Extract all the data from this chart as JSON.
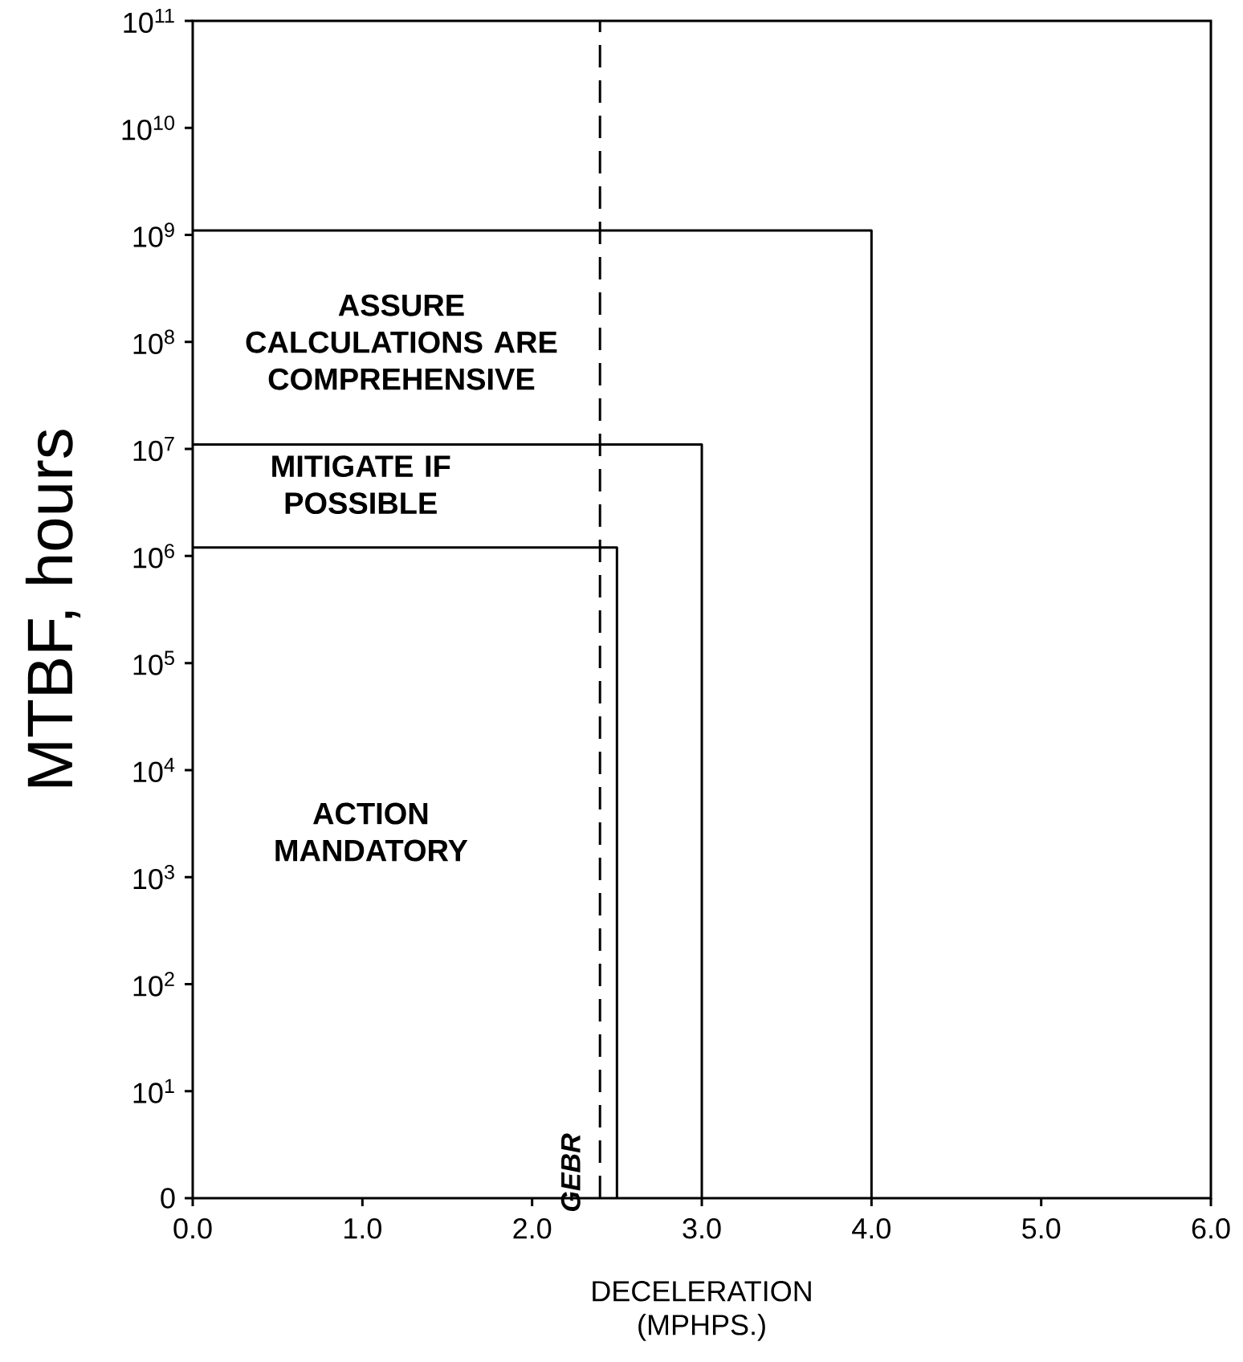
{
  "chart_data": {
    "type": "line",
    "xlabel": "DECELERATION (MPHPS.)",
    "ylabel": "MTBF, hours",
    "log": "y",
    "line_style": "solid",
    "xlim": [
      0,
      6
    ],
    "ylim": [
      0,
      100000000000.0
    ],
    "xticks": [
      {
        "value": 0,
        "label": "0.0"
      },
      {
        "value": 1,
        "label": "1.0"
      },
      {
        "value": 2,
        "label": "2.0"
      },
      {
        "value": 3,
        "label": "3.0"
      },
      {
        "value": 4,
        "label": "4.0"
      },
      {
        "value": 5,
        "label": "5.0"
      },
      {
        "value": 6,
        "label": "6.0"
      }
    ],
    "yticks": [
      {
        "value": 0,
        "label": "0"
      },
      {
        "value": 10,
        "label": "10$^{1}$"
      },
      {
        "value": 100,
        "label": "10$^{2}$"
      },
      {
        "value": 1000,
        "label": "10$^{3}$"
      },
      {
        "value": 10000,
        "label": "10$^{4}$"
      },
      {
        "value": 100000,
        "label": "10$^{5}$"
      },
      {
        "value": 1000000,
        "label": "10$^{6}$"
      },
      {
        "value": 10000000,
        "label": "10$^{7}$"
      },
      {
        "value": 100000000,
        "label": "10$^{8}$"
      },
      {
        "value": 1000000000,
        "label": "10$^{9}$"
      },
      {
        "value": 10000000000,
        "label": "10$^{10}$"
      },
      {
        "value": 100000000000,
        "label": "10$^{11}$"
      }
    ],
    "series": [
      {
        "color": "#000000",
        "x": [
          0,
          4.0,
          4.0
        ],
        "values": [
          1100000000.0,
          1100000000.0,
          1
        ]
      },
      {
        "color": "#000000",
        "x": [
          0,
          3.0,
          3.0
        ],
        "values": [
          11000000.0,
          11000000.0,
          1
        ]
      },
      {
        "color": "#000000",
        "x": [
          0,
          2.5,
          2.5
        ],
        "values": [
          1200000.0,
          1200000.0,
          1
        ]
      }
    ],
    "ref_lines": [
      {
        "axis": "x",
        "value": 2.4,
        "label": "GEBR",
        "color": "#000000",
        "line_style": "dashed"
      }
    ],
    "annotations": [
      "ASSURE CALCULATIONS ARE COMPREHENSIVE",
      "MITIGATE IF POSSIBLE",
      "ACTION MANDATORY"
    ]
  }
}
